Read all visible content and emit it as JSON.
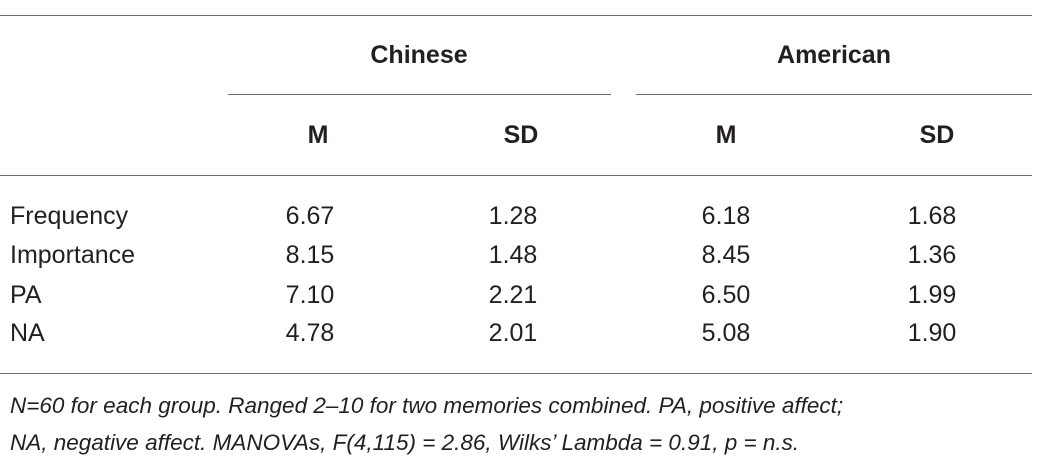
{
  "table": {
    "group_headers": [
      "Chinese",
      "American"
    ],
    "sub_headers": [
      "M",
      "SD",
      "M",
      "SD"
    ],
    "rows": [
      {
        "label": "Frequency",
        "values": [
          "6.67",
          "1.28",
          "6.18",
          "1.68"
        ]
      },
      {
        "label": "Importance",
        "values": [
          "8.15",
          "1.48",
          "8.45",
          "1.36"
        ]
      },
      {
        "label": "PA",
        "values": [
          "7.10",
          "2.21",
          "6.50",
          "1.99"
        ]
      },
      {
        "label": "NA",
        "values": [
          "4.78",
          "2.01",
          "5.08",
          "1.90"
        ]
      }
    ],
    "note_lines": [
      "N=60 for each group. Ranged 2–10 for two memories combined. PA, positive affect;",
      "NA, negative affect. MANOVAs, F(4,115) = 2.86, Wilks’ Lambda = 0.91, p = n.s."
    ]
  }
}
